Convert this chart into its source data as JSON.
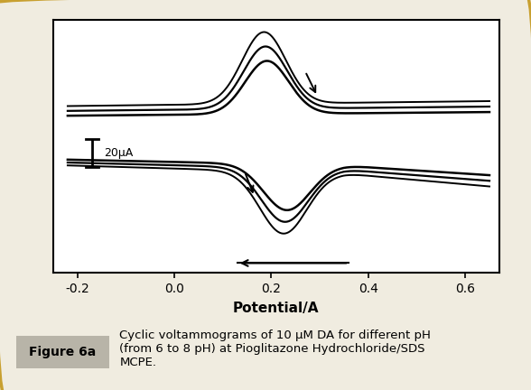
{
  "title": "",
  "xlabel": "Potential/A",
  "ylabel": "",
  "xlim": [
    -0.25,
    0.67
  ],
  "ylim": [
    -1.05,
    1.0
  ],
  "xticks": [
    -0.2,
    0.0,
    0.2,
    0.4,
    0.6
  ],
  "xtick_labels": [
    "-0.2",
    "0.0",
    "0.2",
    "0.4",
    "0.6"
  ],
  "scalebar_label": "20μA",
  "figure_label": "Figure 6a",
  "caption": "Cyclic voltammograms of 10 μM DA for different pH\n(from 6 to 8 pH) at Pioglitazone Hydrochloride/SDS\nMCPE.",
  "background_color": "#ffffff",
  "outer_bg": "#f0ece0",
  "curve_color": "#000000",
  "border_color": "#c8a030",
  "curve_scales": [
    1.0,
    0.87,
    0.74
  ],
  "curve_anodic_peaks": [
    0.185,
    0.188,
    0.191
  ],
  "curve_cathodic_peaks": [
    0.225,
    0.228,
    0.232
  ],
  "anodic_sigma": 0.045,
  "cathodic_sigma": 0.048,
  "linewidths": [
    1.4,
    1.6,
    1.8
  ]
}
